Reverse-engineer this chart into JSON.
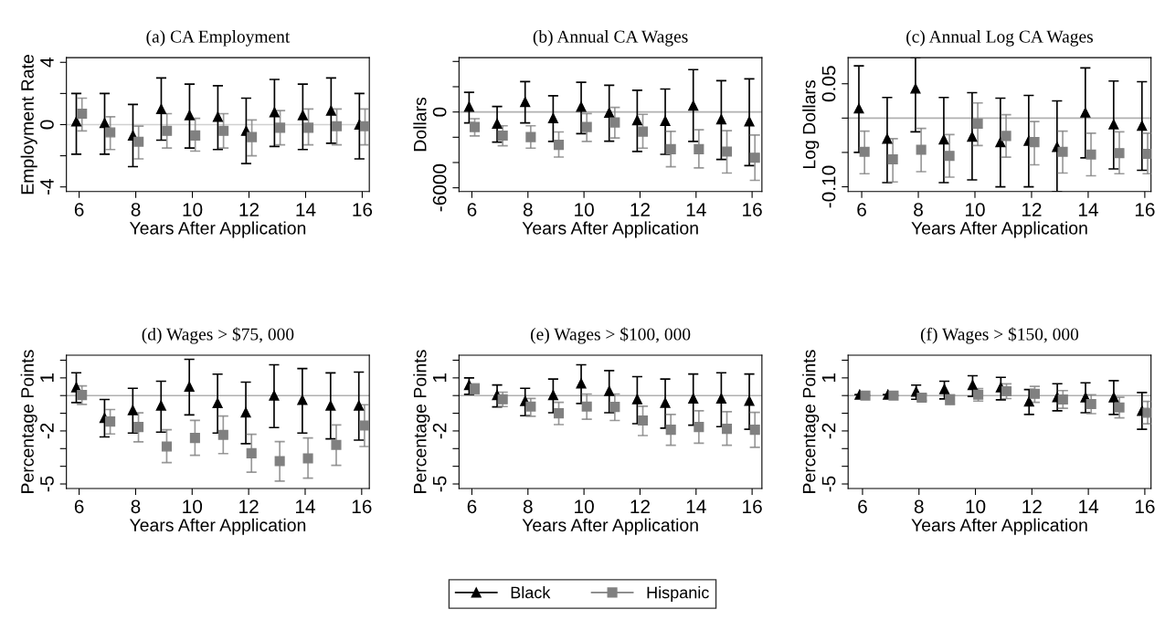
{
  "chart_data": [
    {
      "type": "scatter",
      "title": "(a) CA Employment",
      "xlabel": "Years After Application",
      "ylabel": "Employment Rate",
      "xlim": [
        5.55,
        16.25
      ],
      "xticks": [
        6,
        8,
        10,
        12,
        14,
        16
      ],
      "ylim": [
        -4.3,
        4.3
      ],
      "yticks": [
        -4,
        {
          "value": -2,
          "label": null
        },
        0,
        {
          "value": 2,
          "label": null
        },
        4
      ],
      "ref_lines": [
        {
          "axis": "y",
          "value": 0,
          "color": "#d0d0d0"
        }
      ],
      "legend": "bottom",
      "series": [
        {
          "name": "Black",
          "color": "#000000",
          "marker": "triangle",
          "x": [
            5.9,
            6.9,
            7.9,
            8.9,
            9.9,
            10.9,
            11.9,
            12.9,
            13.9,
            14.9,
            15.9
          ],
          "values": [
            0.2,
            0.1,
            -0.7,
            1.0,
            0.6,
            0.5,
            -0.4,
            0.8,
            0.6,
            0.9,
            0.0
          ],
          "errors": [
            [
              -1.9,
              2.0
            ],
            [
              -1.9,
              2.0
            ],
            [
              -2.7,
              1.3
            ],
            [
              -1.0,
              3.0
            ],
            [
              -1.5,
              2.6
            ],
            [
              -1.6,
              2.5
            ],
            [
              -2.5,
              1.7
            ],
            [
              -1.4,
              2.9
            ],
            [
              -1.6,
              2.6
            ],
            [
              -1.2,
              3.0
            ],
            [
              -2.2,
              2.0
            ]
          ]
        },
        {
          "name": "Hispanic",
          "color": "#808080",
          "marker": "square",
          "x": [
            6.1,
            7.1,
            8.1,
            9.1,
            10.1,
            11.1,
            12.1,
            13.1,
            14.1,
            15.1,
            16.1
          ],
          "values": [
            0.7,
            -0.5,
            -1.1,
            -0.4,
            -0.7,
            -0.4,
            -0.8,
            -0.2,
            -0.2,
            -0.1,
            -0.1
          ],
          "errors": [
            [
              -0.4,
              1.7
            ],
            [
              -1.6,
              0.5
            ],
            [
              -2.2,
              -0.1
            ],
            [
              -1.5,
              0.7
            ],
            [
              -1.7,
              0.4
            ],
            [
              -1.5,
              0.7
            ],
            [
              -2.0,
              0.3
            ],
            [
              -1.3,
              0.9
            ],
            [
              -1.3,
              1.0
            ],
            [
              -1.3,
              1.0
            ],
            [
              -1.3,
              1.0
            ]
          ]
        }
      ]
    },
    {
      "type": "scatter",
      "title": "(b) Annual CA Wages",
      "xlabel": "Years After Application",
      "ylabel": "Dollars",
      "xlim": [
        5.54,
        16.35
      ],
      "xticks": [
        6,
        8,
        10,
        12,
        14,
        16
      ],
      "ylim": [
        -6300,
        4300
      ],
      "yticks": [
        -6000,
        {
          "value": -4000,
          "label": null
        },
        {
          "value": -2000,
          "label": null
        },
        0,
        {
          "value": 2000,
          "label": null
        },
        {
          "value": 4000,
          "label": null
        }
      ],
      "ref_lines": [
        {
          "axis": "y",
          "value": 0,
          "color": "#b0b0b0"
        }
      ],
      "legend": "bottom",
      "series": [
        {
          "name": "Black",
          "color": "#000000",
          "marker": "triangle",
          "x": [
            5.9,
            6.9,
            7.9,
            8.9,
            9.9,
            10.9,
            11.9,
            12.9,
            13.9,
            14.9,
            15.9
          ],
          "values": [
            410,
            -920,
            800,
            -490,
            410,
            -50,
            -660,
            -700,
            510,
            -580,
            -750
          ],
          "errors": [
            [
              -870,
              1550
            ],
            [
              -2380,
              440
            ],
            [
              -870,
              2400
            ],
            [
              -2330,
              1290
            ],
            [
              -1720,
              2350
            ],
            [
              -2310,
              2110
            ],
            [
              -3130,
              1720
            ],
            [
              -3350,
              1820
            ],
            [
              -2330,
              3350
            ],
            [
              -3760,
              2480
            ],
            [
              -4250,
              2620
            ]
          ]
        },
        {
          "name": "Hispanic",
          "color": "#808080",
          "marker": "square",
          "x": [
            6.1,
            7.1,
            8.1,
            9.1,
            10.1,
            11.1,
            12.1,
            13.1,
            14.1,
            15.1,
            16.1
          ],
          "values": [
            -1190,
            -1870,
            -1990,
            -2600,
            -1190,
            -830,
            -1550,
            -2940,
            -2940,
            -3130,
            -3620
          ],
          "errors": [
            [
              -1890,
              -530
            ],
            [
              -2670,
              -1090
            ],
            [
              -2860,
              -1090
            ],
            [
              -3570,
              -1580
            ],
            [
              -2330,
              -120
            ],
            [
              -2060,
              360
            ],
            [
              -2860,
              -190
            ],
            [
              -4340,
              -1530
            ],
            [
              -4420,
              -1410
            ],
            [
              -4830,
              -1480
            ],
            [
              -5410,
              -1820
            ]
          ]
        }
      ]
    },
    {
      "type": "scatter",
      "title": "(c) Annual Log CA Wages",
      "xlabel": "Years After Application",
      "ylabel": "Log Dollars",
      "xlim": [
        5.52,
        16.22
      ],
      "xticks": [
        6,
        8,
        10,
        12,
        14,
        16
      ],
      "ylim": [
        -0.107,
        0.088
      ],
      "yticks": [
        {
          "value": -0.1,
          "label": "-0.10"
        },
        {
          "value": -0.05,
          "label": null
        },
        {
          "value": 0,
          "label": null
        },
        0.05
      ],
      "ref_lines": [
        {
          "axis": "y",
          "value": 0,
          "color": "#b0b0b0"
        }
      ],
      "legend": "bottom",
      "series": [
        {
          "name": "Black",
          "color": "#000000",
          "marker": "triangle",
          "x": [
            5.9,
            6.9,
            7.9,
            8.9,
            9.9,
            10.9,
            11.9,
            12.9,
            13.9,
            14.9,
            15.9
          ],
          "values": [
            0.014,
            -0.03,
            0.043,
            -0.031,
            -0.027,
            -0.035,
            -0.033,
            -0.042,
            0.008,
            -0.009,
            -0.011
          ],
          "errors": [
            [
              -0.05,
              0.076
            ],
            [
              -0.094,
              0.03
            ],
            [
              -0.02,
              0.088
            ],
            [
              -0.094,
              0.03
            ],
            [
              -0.09,
              0.037
            ],
            [
              -0.1,
              0.029
            ],
            [
              -0.1,
              0.033
            ],
            [
              -0.107,
              0.025
            ],
            [
              -0.058,
              0.073
            ],
            [
              -0.074,
              0.054
            ],
            [
              -0.076,
              0.053
            ]
          ]
        },
        {
          "name": "Hispanic",
          "color": "#808080",
          "marker": "square",
          "x": [
            6.1,
            7.1,
            8.1,
            9.1,
            10.1,
            11.1,
            12.1,
            13.1,
            14.1,
            15.1,
            16.1
          ],
          "values": [
            -0.049,
            -0.06,
            -0.046,
            -0.055,
            -0.008,
            -0.026,
            -0.035,
            -0.049,
            -0.053,
            -0.051,
            -0.052
          ],
          "errors": [
            [
              -0.081,
              -0.019
            ],
            [
              -0.093,
              -0.03
            ],
            [
              -0.078,
              -0.015
            ],
            [
              -0.086,
              -0.024
            ],
            [
              -0.04,
              0.022
            ],
            [
              -0.057,
              0.005
            ],
            [
              -0.068,
              -0.005
            ],
            [
              -0.08,
              -0.019
            ],
            [
              -0.084,
              -0.022
            ],
            [
              -0.081,
              -0.02
            ],
            [
              -0.081,
              -0.022
            ]
          ]
        }
      ]
    },
    {
      "type": "scatter",
      "title": "(d) Wages > $75, 000",
      "xlabel": "Years After Application",
      "ylabel": "Percentage Points",
      "xlim": [
        5.55,
        16.27
      ],
      "xticks": [
        6,
        8,
        10,
        12,
        14,
        16
      ],
      "ylim": [
        -5.26,
        2.28
      ],
      "yticks": [
        -5,
        {
          "value": -4,
          "label": null
        },
        {
          "value": -3,
          "label": null
        },
        -2,
        {
          "value": -1,
          "label": null
        },
        {
          "value": 0,
          "label": null
        },
        1,
        {
          "value": 2,
          "label": null
        }
      ],
      "ref_lines": [
        {
          "axis": "y",
          "value": 0,
          "color": "#b0b0b0"
        }
      ],
      "legend": "bottom",
      "series": [
        {
          "name": "Black",
          "color": "#000000",
          "marker": "triangle",
          "x": [
            5.9,
            6.9,
            7.9,
            8.9,
            9.9,
            10.9,
            11.9,
            12.9,
            13.9,
            14.9,
            15.9
          ],
          "values": [
            0.47,
            -1.26,
            -0.83,
            -0.57,
            0.5,
            -0.43,
            -0.95,
            0.0,
            -0.24,
            -0.57,
            -0.57
          ],
          "errors": [
            [
              -0.4,
              1.29
            ],
            [
              -2.34,
              -0.22
            ],
            [
              -2.12,
              0.41
            ],
            [
              -2.07,
              0.81
            ],
            [
              -1.09,
              2.05
            ],
            [
              -2.12,
              1.21
            ],
            [
              -2.72,
              0.76
            ],
            [
              -1.81,
              1.74
            ],
            [
              -2.12,
              1.53
            ],
            [
              -2.45,
              1.28
            ],
            [
              -2.52,
              1.33
            ]
          ]
        },
        {
          "name": "Hispanic",
          "color": "#808080",
          "marker": "square",
          "x": [
            6.1,
            7.1,
            8.1,
            9.1,
            10.1,
            11.1,
            12.1,
            13.1,
            14.1,
            15.1,
            16.1
          ],
          "values": [
            0.03,
            -1.47,
            -1.78,
            -2.88,
            -2.4,
            -2.22,
            -3.26,
            -3.71,
            -3.55,
            -2.79,
            -1.69
          ],
          "errors": [
            [
              -0.5,
              0.55
            ],
            [
              -2.17,
              -0.79
            ],
            [
              -2.62,
              -0.98
            ],
            [
              -3.79,
              -1.93
            ],
            [
              -3.38,
              -1.4
            ],
            [
              -3.28,
              -1.16
            ],
            [
              -4.33,
              -2.19
            ],
            [
              -4.84,
              -2.6
            ],
            [
              -4.67,
              -2.4
            ],
            [
              -3.95,
              -1.66
            ],
            [
              -2.88,
              -0.52
            ]
          ]
        }
      ]
    },
    {
      "type": "scatter",
      "title": "(e) Wages > $100, 000",
      "xlabel": "Years After Application",
      "ylabel": "Percentage Points",
      "xlim": [
        5.54,
        16.35
      ],
      "xticks": [
        6,
        8,
        10,
        12,
        14,
        16
      ],
      "ylim": [
        -5.26,
        2.28
      ],
      "yticks": [
        -5,
        {
          "value": -4,
          "label": null
        },
        {
          "value": -3,
          "label": null
        },
        -2,
        {
          "value": -1,
          "label": null
        },
        {
          "value": 0,
          "label": null
        },
        1,
        {
          "value": 2,
          "label": null
        }
      ],
      "ref_lines": [
        {
          "axis": "y",
          "value": 0,
          "color": "#b0b0b0"
        }
      ],
      "legend": "bottom",
      "series": [
        {
          "name": "Black",
          "color": "#000000",
          "marker": "triangle",
          "x": [
            5.9,
            6.9,
            7.9,
            8.9,
            9.9,
            10.9,
            11.9,
            12.9,
            13.9,
            14.9,
            15.9
          ],
          "values": [
            0.6,
            0.03,
            -0.31,
            0.03,
            0.69,
            0.26,
            -0.21,
            -0.41,
            -0.17,
            -0.17,
            -0.29
          ],
          "errors": [
            [
              0.07,
              1.0
            ],
            [
              -0.64,
              0.6
            ],
            [
              -1.14,
              0.41
            ],
            [
              -0.97,
              0.93
            ],
            [
              -0.45,
              1.74
            ],
            [
              -0.97,
              1.41
            ],
            [
              -1.59,
              1.07
            ],
            [
              -1.84,
              0.93
            ],
            [
              -1.67,
              1.22
            ],
            [
              -1.76,
              1.29
            ],
            [
              -1.91,
              1.22
            ]
          ]
        },
        {
          "name": "Hispanic",
          "color": "#808080",
          "marker": "square",
          "x": [
            6.1,
            7.1,
            8.1,
            9.1,
            10.1,
            11.1,
            12.1,
            13.1,
            14.1,
            15.1,
            16.1
          ],
          "values": [
            0.38,
            -0.21,
            -0.62,
            -1.0,
            -0.62,
            -0.64,
            -1.41,
            -1.93,
            -1.78,
            -1.88,
            -1.93
          ],
          "errors": [
            [
              0.1,
              0.66
            ],
            [
              -0.62,
              0.19
            ],
            [
              -1.17,
              -0.16
            ],
            [
              -1.64,
              -0.38
            ],
            [
              -1.34,
              0.09
            ],
            [
              -1.41,
              0.09
            ],
            [
              -2.26,
              -0.6
            ],
            [
              -2.81,
              -1.07
            ],
            [
              -2.69,
              -0.86
            ],
            [
              -2.81,
              -0.91
            ],
            [
              -2.93,
              -0.95
            ]
          ]
        }
      ]
    },
    {
      "type": "scatter",
      "title": "(f) Wages > $150, 000",
      "xlabel": "Years After Application",
      "ylabel": "Percentage Points",
      "xlim": [
        5.49,
        16.22
      ],
      "xticks": [
        6,
        8,
        10,
        12,
        14,
        16
      ],
      "ylim": [
        -5.26,
        2.28
      ],
      "yticks": [
        -5,
        {
          "value": -4,
          "label": null
        },
        {
          "value": -3,
          "label": null
        },
        -2,
        {
          "value": -1,
          "label": null
        },
        {
          "value": 0,
          "label": null
        },
        1,
        {
          "value": 2,
          "label": null
        }
      ],
      "ref_lines": [
        {
          "axis": "y",
          "value": 0,
          "color": "#b0b0b0"
        }
      ],
      "legend": "bottom",
      "series": [
        {
          "name": "Black",
          "color": "#000000",
          "marker": "triangle",
          "x": [
            5.9,
            6.9,
            7.9,
            8.9,
            9.9,
            10.9,
            11.9,
            12.9,
            13.9,
            14.9,
            15.9
          ],
          "values": [
            0.05,
            0.05,
            0.22,
            0.36,
            0.6,
            0.47,
            -0.34,
            -0.09,
            -0.1,
            -0.1,
            -0.86
          ],
          "errors": [
            null,
            null,
            [
              -0.21,
              0.59
            ],
            [
              -0.19,
              0.81
            ],
            [
              -0.05,
              1.12
            ],
            [
              -0.24,
              1.03
            ],
            [
              -1.07,
              0.34
            ],
            [
              -0.86,
              0.67
            ],
            [
              -0.97,
              0.72
            ],
            [
              -1.07,
              0.84
            ],
            [
              -1.91,
              0.17
            ]
          ]
        },
        {
          "name": "Hispanic",
          "color": "#808080",
          "marker": "square",
          "x": [
            6.1,
            7.1,
            8.1,
            9.1,
            10.1,
            11.1,
            12.1,
            13.1,
            14.1,
            15.1,
            16.1
          ],
          "values": [
            0.0,
            0.0,
            -0.12,
            -0.22,
            0.05,
            0.24,
            0.1,
            -0.22,
            -0.48,
            -0.67,
            -0.97
          ],
          "errors": [
            null,
            null,
            [
              -0.28,
              0.07
            ],
            [
              -0.52,
              0.05
            ],
            [
              -0.31,
              0.4
            ],
            [
              -0.17,
              0.66
            ],
            [
              -0.38,
              0.52
            ],
            [
              -0.72,
              0.28
            ],
            [
              -1.02,
              0.05
            ],
            [
              -1.26,
              -0.1
            ],
            [
              -1.6,
              -0.33
            ]
          ]
        }
      ]
    }
  ]
}
